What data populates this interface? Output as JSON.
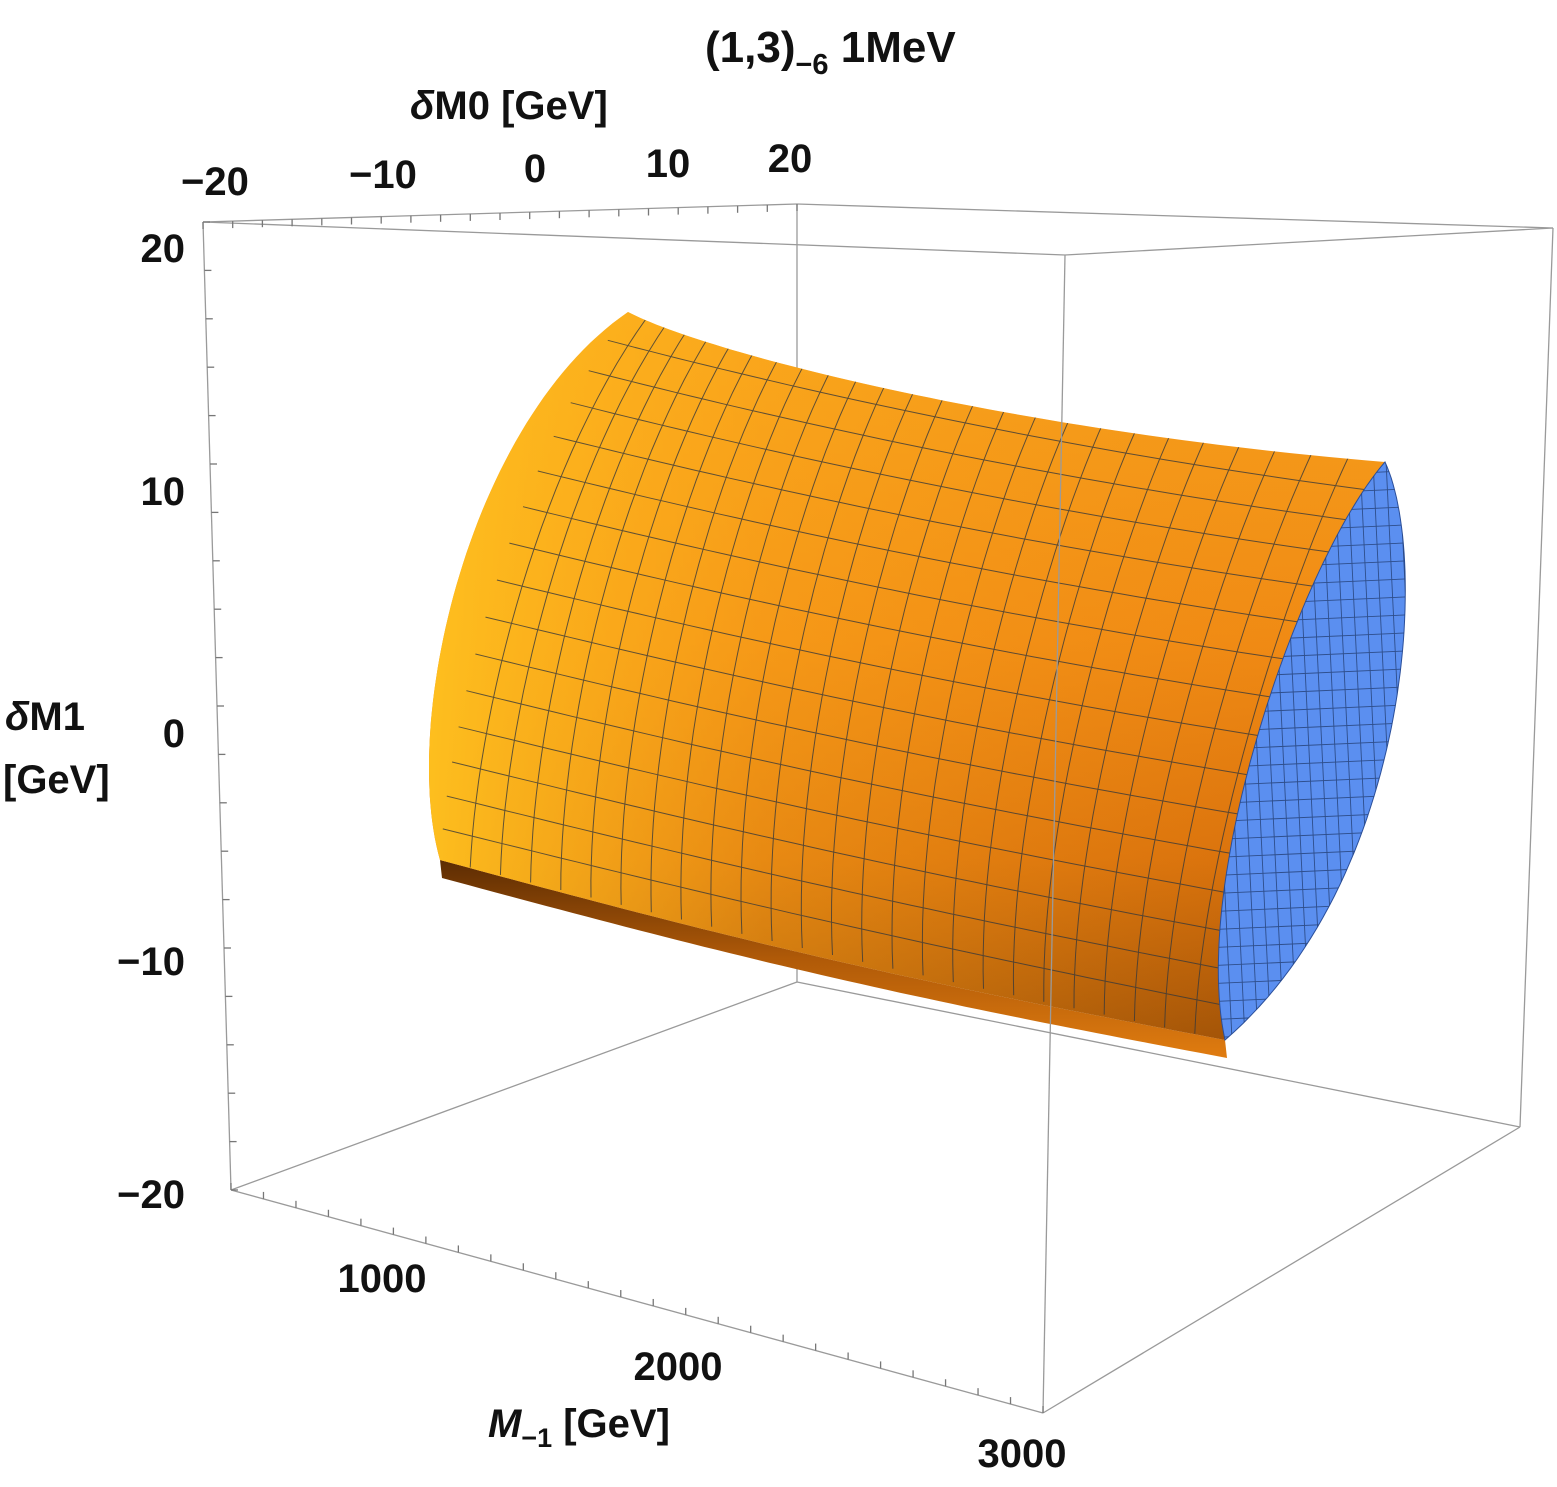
{
  "chart_data": {
    "type": "surface3d",
    "title_main": "(1,3)",
    "title_sub": "−6",
    "title_tail": " 1MeV",
    "x_axis": {
      "label_delta": "δ",
      "label_text": "M0 [GeV]",
      "range": [
        -20,
        20
      ],
      "ticks": [
        "−20",
        "−10",
        "0",
        "10",
        "20"
      ]
    },
    "y_axis": {
      "label_delta": "δ",
      "label_line1": "M1",
      "label_line2": "[GeV]",
      "range": [
        -20,
        20
      ],
      "ticks": [
        "20",
        "10",
        "0",
        "−10",
        "−20"
      ]
    },
    "z_axis": {
      "label_main": "M",
      "label_sub": "−1",
      "label_tail": " [GeV]",
      "range": [
        500,
        3000
      ],
      "ticks": [
        "1000",
        "2000",
        "3000"
      ]
    },
    "surface": {
      "description_none": "",
      "color_outer": "#f08a14",
      "color_highlight": "#ffc21f",
      "color_shadow": "#7a3c05",
      "color_cap": "#5b8ff0",
      "mesh_color": "#3a3a3a"
    },
    "box_color": "#9a9a9a"
  }
}
